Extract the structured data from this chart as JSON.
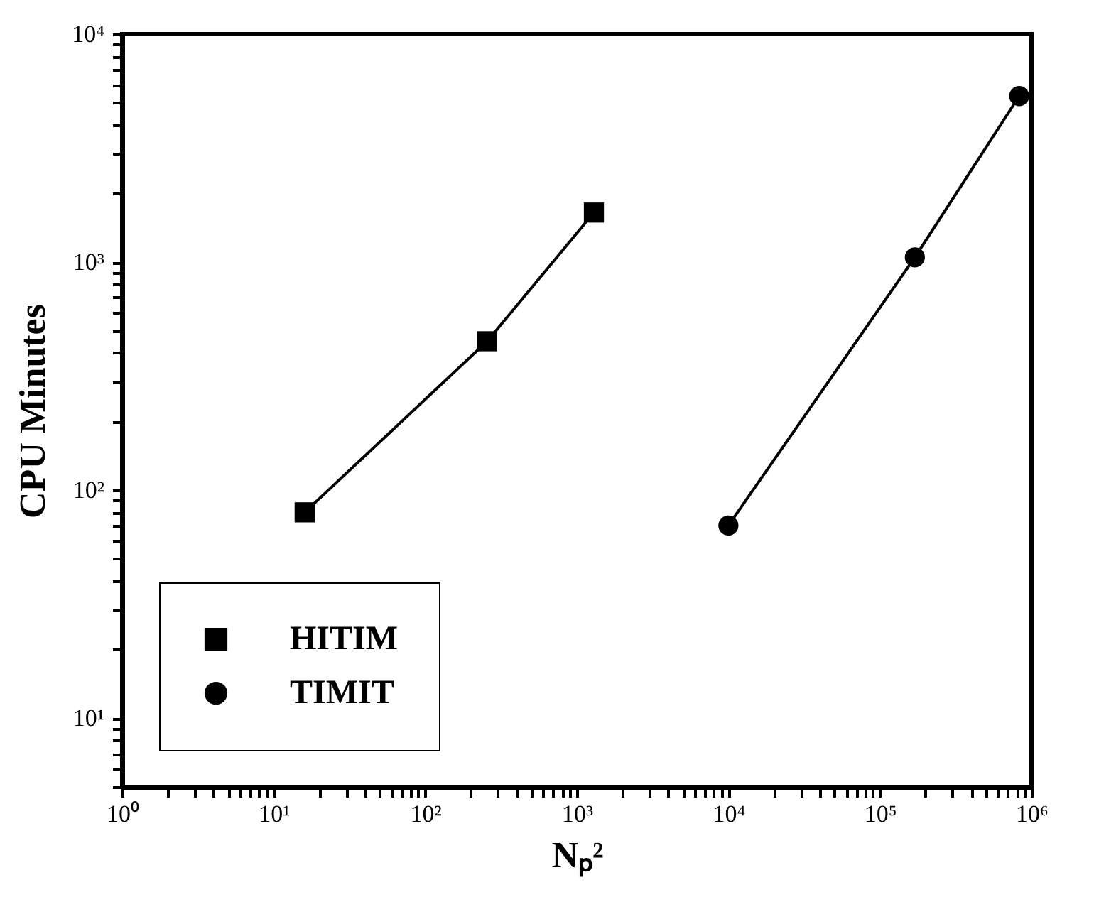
{
  "chart_data": {
    "type": "line",
    "xlabel": "Nₚ²",
    "ylabel": "CPU Minutes",
    "log": "xy",
    "grid": false,
    "legend": "bottom left",
    "xlim": [
      1,
      1000000
    ],
    "ylim": [
      5,
      10000
    ],
    "xticks": [
      {
        "value": 1,
        "label": "10⁰"
      },
      {
        "value": 2,
        "label": null
      },
      {
        "value": 3,
        "label": null
      },
      {
        "value": 4,
        "label": null
      },
      {
        "value": 5,
        "label": null
      },
      {
        "value": 6,
        "label": null
      },
      {
        "value": 7,
        "label": null
      },
      {
        "value": 8,
        "label": null
      },
      {
        "value": 9,
        "label": null
      },
      {
        "value": 10,
        "label": "10¹"
      },
      {
        "value": 20,
        "label": null
      },
      {
        "value": 30,
        "label": null
      },
      {
        "value": 40,
        "label": null
      },
      {
        "value": 50,
        "label": null
      },
      {
        "value": 60,
        "label": null
      },
      {
        "value": 70,
        "label": null
      },
      {
        "value": 80,
        "label": null
      },
      {
        "value": 90,
        "label": null
      },
      {
        "value": 100,
        "label": "10²"
      },
      {
        "value": 200,
        "label": null
      },
      {
        "value": 300,
        "label": null
      },
      {
        "value": 400,
        "label": null
      },
      {
        "value": 500,
        "label": null
      },
      {
        "value": 600,
        "label": null
      },
      {
        "value": 700,
        "label": null
      },
      {
        "value": 800,
        "label": null
      },
      {
        "value": 900,
        "label": null
      },
      {
        "value": 1000,
        "label": "10³"
      },
      {
        "value": 2000,
        "label": null
      },
      {
        "value": 3000,
        "label": null
      },
      {
        "value": 4000,
        "label": null
      },
      {
        "value": 5000,
        "label": null
      },
      {
        "value": 6000,
        "label": null
      },
      {
        "value": 7000,
        "label": null
      },
      {
        "value": 8000,
        "label": null
      },
      {
        "value": 9000,
        "label": null
      },
      {
        "value": 10000,
        "label": "10⁴"
      },
      {
        "value": 20000,
        "label": null
      },
      {
        "value": 30000,
        "label": null
      },
      {
        "value": 40000,
        "label": null
      },
      {
        "value": 50000,
        "label": null
      },
      {
        "value": 60000,
        "label": null
      },
      {
        "value": 70000,
        "label": null
      },
      {
        "value": 80000,
        "label": null
      },
      {
        "value": 90000,
        "label": null
      },
      {
        "value": 100000,
        "label": "10⁵"
      },
      {
        "value": 200000,
        "label": null
      },
      {
        "value": 300000,
        "label": null
      },
      {
        "value": 400000,
        "label": null
      },
      {
        "value": 500000,
        "label": null
      },
      {
        "value": 600000,
        "label": null
      },
      {
        "value": 700000,
        "label": null
      },
      {
        "value": 800000,
        "label": null
      },
      {
        "value": 900000,
        "label": null
      },
      {
        "value": 1000000,
        "label": "10⁶"
      }
    ],
    "yticks": [
      {
        "value": 5,
        "label": null
      },
      {
        "value": 6,
        "label": null
      },
      {
        "value": 7,
        "label": null
      },
      {
        "value": 8,
        "label": null
      },
      {
        "value": 9,
        "label": null
      },
      {
        "value": 10,
        "label": "10¹"
      },
      {
        "value": 20,
        "label": null
      },
      {
        "value": 30,
        "label": null
      },
      {
        "value": 40,
        "label": null
      },
      {
        "value": 50,
        "label": null
      },
      {
        "value": 60,
        "label": null
      },
      {
        "value": 70,
        "label": null
      },
      {
        "value": 80,
        "label": null
      },
      {
        "value": 90,
        "label": null
      },
      {
        "value": 100,
        "label": "10²"
      },
      {
        "value": 200,
        "label": null
      },
      {
        "value": 300,
        "label": null
      },
      {
        "value": 400,
        "label": null
      },
      {
        "value": 500,
        "label": null
      },
      {
        "value": 600,
        "label": null
      },
      {
        "value": 700,
        "label": null
      },
      {
        "value": 800,
        "label": null
      },
      {
        "value": 900,
        "label": null
      },
      {
        "value": 1000,
        "label": "10³"
      },
      {
        "value": 2000,
        "label": null
      },
      {
        "value": 3000,
        "label": null
      },
      {
        "value": 4000,
        "label": null
      },
      {
        "value": 5000,
        "label": null
      },
      {
        "value": 6000,
        "label": null
      },
      {
        "value": 7000,
        "label": null
      },
      {
        "value": 8000,
        "label": null
      },
      {
        "value": 9000,
        "label": null
      },
      {
        "value": 10000,
        "label": "10⁴"
      }
    ],
    "series": [
      {
        "name": "HITIM",
        "color": "#000000",
        "marker": "square",
        "line_style": "solid",
        "x": [
          16,
          256,
          1296
        ],
        "values": [
          80,
          450,
          1650
        ]
      },
      {
        "name": "TIMIT",
        "color": "#000000",
        "marker": "circle",
        "line_style": "solid",
        "x": [
          10000,
          170000,
          830000
        ],
        "values": [
          70,
          1050,
          5350
        ]
      }
    ]
  }
}
